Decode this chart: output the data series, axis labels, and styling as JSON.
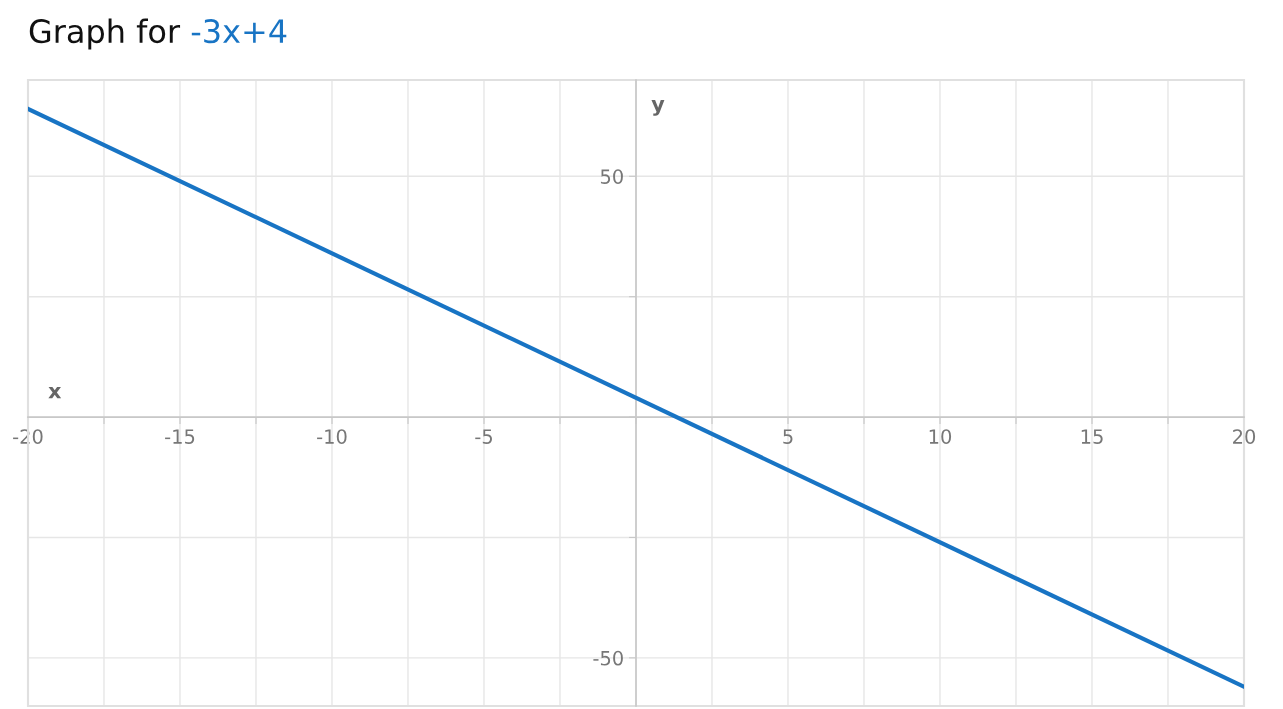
{
  "chart_data": {
    "type": "line",
    "title": "Graph for",
    "xlabel": "x",
    "ylabel": "y",
    "x": [
      -20,
      20
    ],
    "series": [
      {
        "name": "-3x+4",
        "color": "#1874c4",
        "values": [
          64,
          -56
        ]
      }
    ],
    "xlim": [
      -20,
      20
    ],
    "ylim": [
      -60,
      70
    ],
    "xticks": [
      -20,
      {
        "value": -17.5,
        "label": null
      },
      -15,
      {
        "value": -12.5,
        "label": null
      },
      -10,
      {
        "value": -7.5,
        "label": null
      },
      -5,
      {
        "value": -2.5,
        "label": null
      },
      {
        "value": 0,
        "label": null
      },
      {
        "value": 2.5,
        "label": null
      },
      5,
      {
        "value": 7.5,
        "label": null
      },
      10,
      {
        "value": 12.5,
        "label": null
      },
      15,
      {
        "value": 17.5,
        "label": null
      },
      20
    ],
    "yticks": [
      -50,
      {
        "value": -25,
        "label": null
      },
      {
        "value": 0,
        "label": null
      },
      {
        "value": 25,
        "label": null
      },
      50
    ],
    "grid": true,
    "legend": false,
    "marker": "none",
    "line_style": "solid"
  }
}
